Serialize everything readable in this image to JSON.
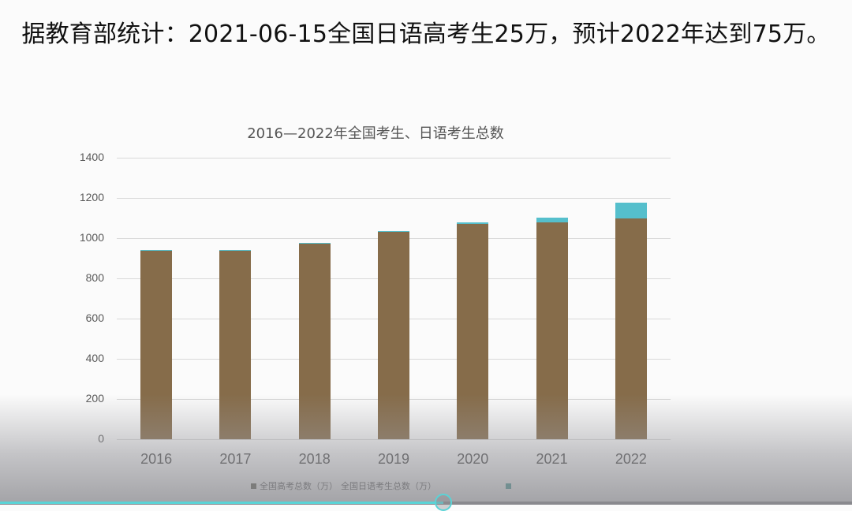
{
  "headline": "据教育部统计：2021-06-15全国日语高考生25万，预计2022年达到75万。",
  "chart_data": {
    "type": "bar",
    "stacked": true,
    "title": "2016—2022年全国考生、日语考生总数",
    "xlabel": "",
    "ylabel": "",
    "ylim": [
      0,
      1400
    ],
    "yticks": [
      "0",
      "200",
      "400",
      "600",
      "800",
      "1000",
      "1200",
      "1400"
    ],
    "grid": true,
    "legend_position": "bottom",
    "categories": [
      "2016",
      "2017",
      "2018",
      "2019",
      "2020",
      "2021",
      "2022"
    ],
    "series": [
      {
        "name": "全国高考总数（万）",
        "color": "#866c4a",
        "values": [
          940,
          940,
          975,
          1031,
          1071,
          1078,
          1100
        ]
      },
      {
        "name": "全国日语考生总数（万）",
        "color": "#55bfcc",
        "values": [
          1,
          1,
          2,
          4,
          8,
          25,
          75
        ]
      }
    ]
  },
  "legend": {
    "items": [
      {
        "label": "全国高考总数（万）",
        "color": "#4d4d3f"
      },
      {
        "label": "全国日语考生总数（万）",
        "color": "#2f8f8a"
      }
    ]
  },
  "player": {
    "progress_percent": 52,
    "accent_color": "#5ad3d6"
  }
}
